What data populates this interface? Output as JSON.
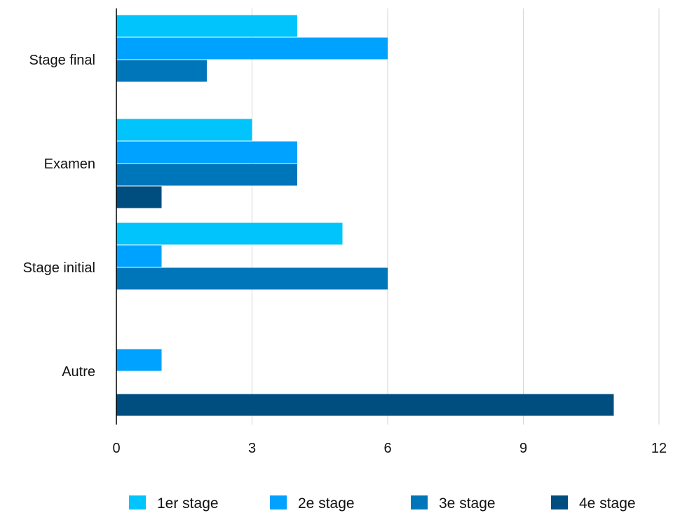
{
  "chart_data": {
    "type": "bar",
    "orientation": "horizontal",
    "categories": [
      "Stage final",
      "Examen",
      "Stage initial",
      "Autre"
    ],
    "series": [
      {
        "name": "1er stage",
        "color": "#00c4fb",
        "values": [
          4,
          3,
          5,
          0
        ]
      },
      {
        "name": "2e stage",
        "color": "#00a2ff",
        "values": [
          6,
          4,
          1,
          1
        ]
      },
      {
        "name": "3e stage",
        "color": "#0076ba",
        "values": [
          2,
          4,
          6,
          0
        ]
      },
      {
        "name": "4e stage",
        "color": "#004d80",
        "values": [
          0,
          1,
          0,
          11
        ]
      }
    ],
    "xticks": [
      "0",
      "3",
      "6",
      "9",
      "12"
    ],
    "xlim": [
      0,
      12
    ],
    "grid": "vertical",
    "legend": "bottom"
  }
}
